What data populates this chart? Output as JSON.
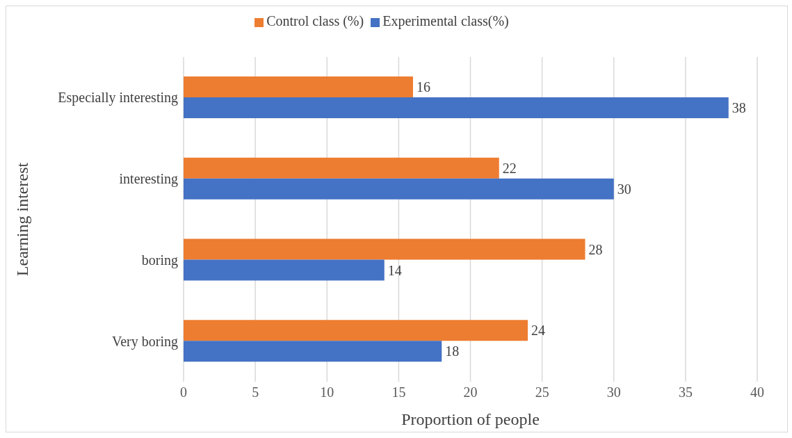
{
  "chart_data": {
    "type": "bar",
    "orientation": "horizontal",
    "xlabel": "Proportion of people",
    "ylabel": "Learning interest",
    "categories": [
      "Especially interesting",
      "interesting",
      "boring",
      "Very boring"
    ],
    "series": [
      {
        "name": "Control class (%)",
        "color": "#ed7d31",
        "values": [
          16,
          22,
          28,
          24
        ]
      },
      {
        "name": "Experimental class(%)",
        "color": "#4472c4",
        "values": [
          38,
          30,
          14,
          18
        ]
      }
    ],
    "xlim": [
      0,
      40
    ],
    "xticks": [
      0,
      5,
      10,
      15,
      20,
      25,
      30,
      35,
      40
    ],
    "grid": "x",
    "legend": "top",
    "data_labels": true
  }
}
